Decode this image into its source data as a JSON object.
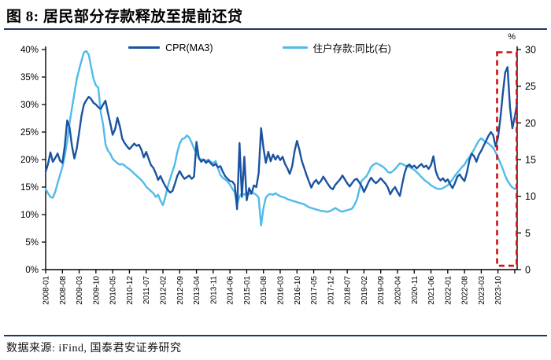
{
  "title": "图 8: 居民部分存款释放至提前还贷",
  "footer": "数据来源: iFind, 国泰君安证券研究",
  "chart_data": {
    "type": "line",
    "title": "图 8: 居民部分存款释放至提前还贷",
    "x_start_month": "2008-01",
    "x_tick_labels": [
      "2008-01",
      "2008-08",
      "2009-03",
      "2009-10",
      "2010-05",
      "2010-12",
      "2011-07",
      "2012-02",
      "2012-09",
      "2013-04",
      "2013-11",
      "2014-06",
      "2015-01",
      "2015-08",
      "2016-03",
      "2016-10",
      "2017-05",
      "2017-12",
      "2018-07",
      "2019-02",
      "2019-09",
      "2020-04",
      "2020-11",
      "2021-06",
      "2022-01",
      "2022-08",
      "2023-03",
      "2023-10"
    ],
    "months_between_ticks": 7,
    "left_axis": {
      "tick_labels_top_to_bottom": [
        "40%",
        "35%",
        "30%",
        "25%",
        "20%",
        "15%",
        "10%",
        "5%",
        "0%"
      ],
      "min": 0,
      "max": 40
    },
    "right_axis": {
      "tick_labels_top_to_bottom": [
        "30",
        "25",
        "20",
        "15",
        "10",
        "5",
        "0"
      ],
      "min": 0,
      "max": 30,
      "unit": "%"
    },
    "grid": false,
    "legend_position": "top-center",
    "series": [
      {
        "name": "CPR(MA3)",
        "axis": "left",
        "color": "#1a53a1",
        "values": [
          17.8,
          19.2,
          21.3,
          19.6,
          20.3,
          21.1,
          19.8,
          19.4,
          22.5,
          27.1,
          25.8,
          22.5,
          20.2,
          22.0,
          25.0,
          28.0,
          30.0,
          30.8,
          31.4,
          31.0,
          30.3,
          30.0,
          29.5,
          29.2,
          30.0,
          30.7,
          28.5,
          26.6,
          24.5,
          25.5,
          27.6,
          26.0,
          23.8,
          23.0,
          22.4,
          21.9,
          22.4,
          22.9,
          22.5,
          22.7,
          21.8,
          20.4,
          21.4,
          20.2,
          19.0,
          18.5,
          17.5,
          16.3,
          17.0,
          16.0,
          15.2,
          14.5,
          14.0,
          14.3,
          15.6,
          17.0,
          17.9,
          17.1,
          16.5,
          16.8,
          17.1,
          16.5,
          16.9,
          23.2,
          20.3,
          19.6,
          20.0,
          19.4,
          19.8,
          19.3,
          18.9,
          19.2,
          18.6,
          18.8,
          17.8,
          17.0,
          16.5,
          16.1,
          16.0,
          15.4,
          11.0,
          23.0,
          13.2,
          20.5,
          12.6,
          14.8,
          13.8,
          15.3,
          15.0,
          17.5,
          25.7,
          22.1,
          19.4,
          21.4,
          19.7,
          20.9,
          20.0,
          20.7,
          19.9,
          20.5,
          19.2,
          18.4,
          17.4,
          18.8,
          21.5,
          23.4,
          21.8,
          19.8,
          18.5,
          17.2,
          16.0,
          14.9,
          15.8,
          16.3,
          15.6,
          16.1,
          16.9,
          16.2,
          15.5,
          14.9,
          14.6,
          15.4,
          15.9,
          16.4,
          17.1,
          16.4,
          15.7,
          15.1,
          15.7,
          16.3,
          16.5,
          15.9,
          15.2,
          14.1,
          15.0,
          16.0,
          16.7,
          16.1,
          15.7,
          16.1,
          16.6,
          16.1,
          15.6,
          14.9,
          13.7,
          14.5,
          15.0,
          14.1,
          13.4,
          15.6,
          17.6,
          18.8,
          19.1,
          18.6,
          18.9,
          18.4,
          18.8,
          19.2,
          18.6,
          18.9,
          18.3,
          19.0,
          20.6,
          17.9,
          16.7,
          16.2,
          16.6,
          16.0,
          16.4,
          15.5,
          14.8,
          15.7,
          16.9,
          17.3,
          16.6,
          16.1,
          17.6,
          19.8,
          21.1,
          20.6,
          19.6,
          20.9,
          21.6,
          22.5,
          23.4,
          24.3,
          25.0,
          24.4,
          22.4,
          24.0,
          27.5,
          32.0,
          35.8,
          36.8,
          29.5,
          25.7,
          27.8,
          30.3
        ]
      },
      {
        "name": "住户存款:同比(右)",
        "axis": "right",
        "color": "#4fbbea",
        "values": [
          11.0,
          10.4,
          9.9,
          9.8,
          10.6,
          11.8,
          12.9,
          14.0,
          15.5,
          17.5,
          20.0,
          22.0,
          24.0,
          26.0,
          27.3,
          28.5,
          29.6,
          29.8,
          29.3,
          27.6,
          26.0,
          25.1,
          24.8,
          21.5,
          19.8,
          17.1,
          16.2,
          15.8,
          15.1,
          14.8,
          14.5,
          14.3,
          14.4,
          14.2,
          13.9,
          13.7,
          13.4,
          13.1,
          12.8,
          12.5,
          12.2,
          11.8,
          11.3,
          11.0,
          10.7,
          10.4,
          9.9,
          10.2,
          9.4,
          8.8,
          9.9,
          11.3,
          12.4,
          13.4,
          14.4,
          16.0,
          17.2,
          17.8,
          17.9,
          18.3,
          18.0,
          17.3,
          16.5,
          15.8,
          15.2,
          15.0,
          15.0,
          14.8,
          15.0,
          14.7,
          14.5,
          14.8,
          13.8,
          12.9,
          12.5,
          12.3,
          12.0,
          11.6,
          11.0,
          10.6,
          8.9,
          10.0,
          10.4,
          10.2,
          10.5,
          10.3,
          10.5,
          10.4,
          10.2,
          9.8,
          6.0,
          8.4,
          9.8,
          10.2,
          10.3,
          10.2,
          10.4,
          10.2,
          10.0,
          9.9,
          9.8,
          9.6,
          9.5,
          9.4,
          9.3,
          9.2,
          9.1,
          9.0,
          8.9,
          8.7,
          8.5,
          8.4,
          8.3,
          8.2,
          8.1,
          8.0,
          8.0,
          7.9,
          7.9,
          8.0,
          8.2,
          8.4,
          8.2,
          8.0,
          7.9,
          8.0,
          8.1,
          8.2,
          8.3,
          8.8,
          9.5,
          10.8,
          12.1,
          12.4,
          12.7,
          13.3,
          14.0,
          14.3,
          14.5,
          14.4,
          14.2,
          14.0,
          13.7,
          13.3,
          13.2,
          13.4,
          13.7,
          14.1,
          14.5,
          14.4,
          14.2,
          14.1,
          14.0,
          13.8,
          13.6,
          13.3,
          13.0,
          12.6,
          12.3,
          12.0,
          11.8,
          11.5,
          11.3,
          11.1,
          11.0,
          11.0,
          11.1,
          11.3,
          11.5,
          11.9,
          12.3,
          12.8,
          13.2,
          13.6,
          14.0,
          14.3,
          14.9,
          15.3,
          15.8,
          16.4,
          17.0,
          17.6,
          17.9,
          17.6,
          17.4,
          17.2,
          16.9,
          16.6,
          16.0,
          15.3,
          14.5,
          13.7,
          12.8,
          12.1,
          11.6,
          11.2,
          11.0,
          11.0
        ]
      }
    ],
    "annotation": {
      "kind": "dashed-box",
      "color": "#cc1111",
      "t_start": 188.6,
      "t_end": 196.8,
      "v_top_left_pct": 39.5,
      "v_bottom_left_pct": 0.7
    }
  }
}
